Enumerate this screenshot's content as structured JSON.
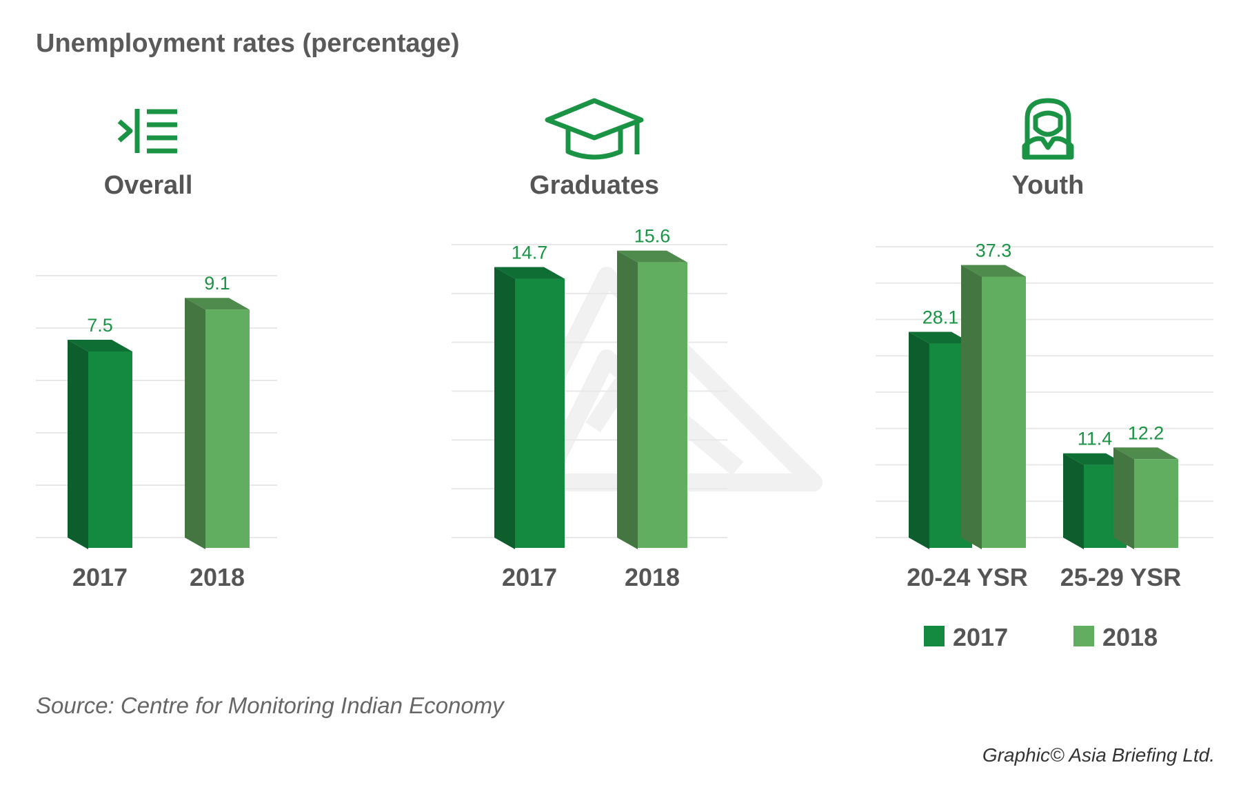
{
  "title": "Unemployment rates (percentage)",
  "source": "Source: Centre for Monitoring Indian Economy",
  "credit": "Graphic© Asia Briefing Ltd.",
  "colors": {
    "series_2017": "#138a40",
    "series_2018": "#62ae60",
    "label_green": "#1a9444",
    "icon_green": "#1a9444",
    "text_gray": "#555555",
    "grid": "#e8e8e8"
  },
  "legend": {
    "items": [
      {
        "label": "2017"
      },
      {
        "label": "2018"
      }
    ]
  },
  "chart_data": [
    {
      "type": "bar",
      "title": "Overall",
      "icon": "indent-list-icon",
      "categories": [
        "2017",
        "2018"
      ],
      "values": [
        7.5,
        9.1
      ],
      "value_labels": [
        "7.5",
        "9.1"
      ]
    },
    {
      "type": "bar",
      "title": "Graduates",
      "icon": "graduation-cap-icon",
      "categories": [
        "2017",
        "2018"
      ],
      "values": [
        14.7,
        15.6
      ],
      "value_labels": [
        "14.7",
        "15.6"
      ]
    },
    {
      "type": "bar",
      "title": "Youth",
      "icon": "person-icon",
      "categories": [
        "20-24 YSR",
        "25-29 YSR"
      ],
      "series": [
        {
          "name": "2017",
          "values": [
            28.1,
            11.4
          ],
          "value_labels": [
            "28.1",
            "11.4"
          ]
        },
        {
          "name": "2018",
          "values": [
            37.3,
            12.2
          ],
          "value_labels": [
            "37.3",
            "12.2"
          ]
        }
      ]
    }
  ]
}
